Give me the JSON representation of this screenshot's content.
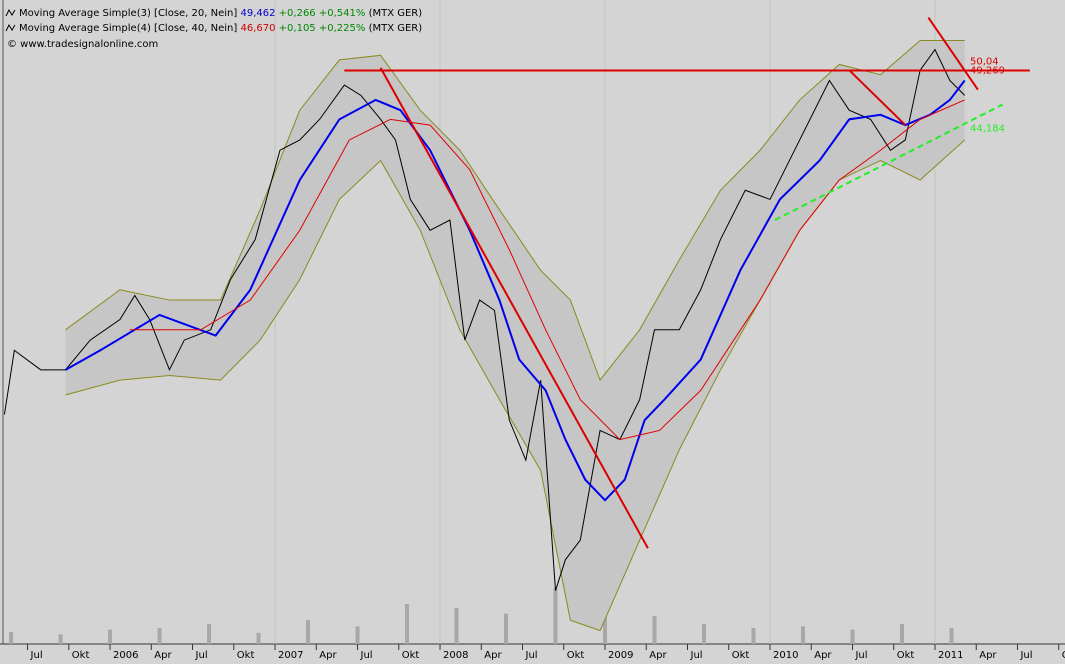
{
  "chart_data": {
    "type": "line",
    "legend": [
      {
        "name": "Moving Average Simple(3) [Close, 20, Nein]",
        "last": "49,462",
        "change": "+0,266",
        "pct": "+0,541%",
        "symbol": "(MTX GER)",
        "color": "#0000cc"
      },
      {
        "name": "Moving Average Simple(4) [Close, 40, Nein]",
        "last": "46,670",
        "change": "+0,105",
        "pct": "+0,225%",
        "symbol": "(MTX GER)",
        "color": "#cc0000"
      }
    ],
    "copyright": "© www.tradesignalonline.com",
    "xlim": [
      2005.333,
      2011.788
    ],
    "ylim": [
      0,
      55
    ],
    "xticks": [
      {
        "value": 2005.5,
        "label": "Jul"
      },
      {
        "value": 2005.75,
        "label": "Okt"
      },
      {
        "value": 2006,
        "label": "2006"
      },
      {
        "value": 2006.25,
        "label": "Apr"
      },
      {
        "value": 2006.5,
        "label": "Jul"
      },
      {
        "value": 2006.75,
        "label": "Okt"
      },
      {
        "value": 2007,
        "label": "2007"
      },
      {
        "value": 2007.25,
        "label": "Apr"
      },
      {
        "value": 2007.5,
        "label": "Jul"
      },
      {
        "value": 2007.75,
        "label": "Okt"
      },
      {
        "value": 2008,
        "label": "2008"
      },
      {
        "value": 2008.25,
        "label": "Apr"
      },
      {
        "value": 2008.5,
        "label": "Jul"
      },
      {
        "value": 2008.75,
        "label": "Okt"
      },
      {
        "value": 2009,
        "label": "2009"
      },
      {
        "value": 2009.25,
        "label": "Apr"
      },
      {
        "value": 2009.5,
        "label": "Jul"
      },
      {
        "value": 2009.75,
        "label": "Okt"
      },
      {
        "value": 2010,
        "label": "2010"
      },
      {
        "value": 2010.25,
        "label": "Apr"
      },
      {
        "value": 2010.5,
        "label": "Jul"
      },
      {
        "value": 2010.75,
        "label": "Okt"
      },
      {
        "value": 2011,
        "label": "2011"
      },
      {
        "value": 2011.25,
        "label": "Apr"
      },
      {
        "value": 2011.5,
        "label": "Jul"
      },
      {
        "value": 2011.75,
        "label": "Okt"
      }
    ],
    "year_grid": [
      2007,
      2008,
      2009,
      2010,
      2011
    ],
    "band": {
      "color": "#8a8a1e",
      "fill": "#c6c6c6",
      "upper": {
        "x": [
          2005.73,
          2006.06,
          2006.36,
          2006.67,
          2006.91,
          2007.15,
          2007.39,
          2007.64,
          2007.88,
          2008.12,
          2008.36,
          2008.61,
          2008.79,
          2008.97,
          2009.21,
          2009.45,
          2009.7,
          2009.94,
          2010.18,
          2010.42,
          2010.67,
          2010.91,
          2011.18
        ],
        "values": [
          26.6,
          30.1,
          29.2,
          29.2,
          37.1,
          45.8,
          50.2,
          50.6,
          45.8,
          42.3,
          37.1,
          31.8,
          29.2,
          22.2,
          26.6,
          32.7,
          38.8,
          42.3,
          46.7,
          49.8,
          48.9,
          51.9,
          51.9
        ]
      },
      "lower": {
        "x": [
          2005.73,
          2006.06,
          2006.36,
          2006.67,
          2006.91,
          2007.15,
          2007.39,
          2007.64,
          2007.88,
          2008.12,
          2008.36,
          2008.61,
          2008.79,
          2008.97,
          2009.21,
          2009.45,
          2009.7,
          2009.94,
          2010.18,
          2010.42,
          2010.67,
          2010.91,
          2011.18
        ],
        "values": [
          20.9,
          22.2,
          22.6,
          22.2,
          25.7,
          31.0,
          38.0,
          41.4,
          35.3,
          26.6,
          20.5,
          14.3,
          1.2,
          0.3,
          8.2,
          16.1,
          23.1,
          29.2,
          35.3,
          39.7,
          41.4,
          39.7,
          43.2
        ]
      }
    },
    "series": [
      {
        "color": "#000000",
        "x": [
          2005.36,
          2005.42,
          2005.58,
          2005.73,
          2005.88,
          2006.06,
          2006.15,
          2006.24,
          2006.36,
          2006.45,
          2006.61,
          2006.73,
          2006.88,
          2007.03,
          2007.15,
          2007.27,
          2007.42,
          2007.52,
          2007.64,
          2007.73,
          2007.82,
          2007.94,
          2008.06,
          2008.15,
          2008.24,
          2008.33,
          2008.42,
          2008.52,
          2008.61,
          2008.7,
          2008.76,
          2008.85,
          2008.97,
          2009.09,
          2009.21,
          2009.3,
          2009.45,
          2009.58,
          2009.7,
          2009.85,
          2010.0,
          2010.18,
          2010.36,
          2010.48,
          2010.61,
          2010.73,
          2010.82,
          2010.91,
          2011.0,
          2011.09,
          2011.18
        ],
        "values": [
          19.2,
          24.8,
          23.1,
          23.1,
          25.7,
          27.5,
          29.6,
          27.5,
          23.1,
          25.7,
          26.6,
          31.0,
          34.5,
          42.3,
          43.2,
          45.0,
          48.0,
          47.1,
          45.0,
          43.2,
          38.0,
          35.3,
          36.2,
          25.7,
          29.2,
          28.3,
          18.7,
          15.2,
          22.2,
          3.8,
          6.5,
          8.2,
          17.8,
          17.0,
          20.5,
          26.6,
          26.6,
          30.1,
          34.5,
          38.8,
          38.0,
          43.2,
          48.4,
          45.8,
          45.0,
          42.3,
          43.2,
          49.3,
          51.1,
          48.4,
          47.1
        ]
      },
      {
        "name": "Moving Average Simple(3) [Close, 20, Nein]",
        "color": "#0000ee",
        "width": 2,
        "x": [
          2005.73,
          2005.94,
          2006.3,
          2006.64,
          2006.85,
          2007.15,
          2007.39,
          2007.61,
          2007.76,
          2007.94,
          2008.18,
          2008.36,
          2008.48,
          2008.64,
          2008.76,
          2008.88,
          2009.0,
          2009.12,
          2009.24,
          2009.36,
          2009.58,
          2009.82,
          2010.06,
          2010.3,
          2010.48,
          2010.67,
          2010.82,
          2010.97,
          2011.09,
          2011.18
        ],
        "values": [
          23.1,
          24.8,
          27.9,
          26.1,
          30.1,
          39.7,
          45.0,
          46.7,
          45.8,
          42.3,
          35.3,
          29.2,
          24.0,
          21.3,
          17.0,
          13.5,
          11.7,
          13.5,
          18.7,
          20.5,
          24.0,
          31.8,
          38.0,
          41.4,
          45.0,
          45.4,
          44.5,
          45.4,
          46.7,
          48.4
        ]
      },
      {
        "name": "Moving Average Simple(4) [Close, 40, Nein]",
        "color": "#e00000",
        "width": 1,
        "x": [
          2006.12,
          2006.55,
          2006.85,
          2007.15,
          2007.45,
          2007.7,
          2007.94,
          2008.18,
          2008.42,
          2008.64,
          2008.85,
          2009.09,
          2009.33,
          2009.58,
          2009.94,
          2010.18,
          2010.42,
          2010.67,
          2010.91,
          2011.18
        ],
        "values": [
          26.6,
          26.6,
          29.2,
          35.3,
          43.2,
          45.0,
          44.5,
          40.6,
          33.6,
          26.6,
          20.5,
          17.0,
          17.8,
          21.3,
          29.2,
          35.3,
          39.7,
          42.3,
          45.0,
          46.7
        ]
      }
    ],
    "trendlines": [
      {
        "color": "#dd0000",
        "dash": false,
        "x": [
          2007.42,
          2011.575
        ],
        "values": [
          49.269,
          49.269
        ]
      },
      {
        "color": "#dd0000",
        "dash": false,
        "x": [
          2007.64,
          2009.26
        ],
        "values": [
          49.5,
          7.5
        ]
      },
      {
        "color": "#dd0000",
        "dash": false,
        "x": [
          2010.48,
          2010.82
        ],
        "values": [
          49.3,
          44.5
        ]
      },
      {
        "color": "#dd0000",
        "dash": false,
        "x": [
          2010.96,
          2011.26
        ],
        "values": [
          53.9,
          47.6
        ]
      },
      {
        "color": "#22ee22",
        "dash": true,
        "x": [
          2010.03,
          2011.41
        ],
        "values": [
          36.2,
          46.3
        ]
      }
    ],
    "price_labels": [
      {
        "value": 49.269,
        "label": "49,269",
        "color": "#dd0000"
      },
      {
        "value": 50.04,
        "label": "50,04",
        "color": "#dd0000"
      },
      {
        "value": 44.184,
        "label": "44,184",
        "color": "#22ee22"
      }
    ],
    "volume": {
      "color": "#a8a8a8",
      "vlim": [
        0,
        100
      ],
      "x": [
        2005.4,
        2005.7,
        2006.0,
        2006.3,
        2006.6,
        2006.9,
        2007.2,
        2007.5,
        2007.8,
        2008.1,
        2008.4,
        2008.7,
        2009.0,
        2009.3,
        2009.6,
        2009.9,
        2010.2,
        2010.5,
        2010.8,
        2011.1
      ],
      "values": [
        15,
        12,
        18,
        20,
        25,
        14,
        30,
        22,
        50,
        45,
        38,
        70,
        40,
        35,
        25,
        20,
        22,
        18,
        25,
        20
      ]
    }
  }
}
